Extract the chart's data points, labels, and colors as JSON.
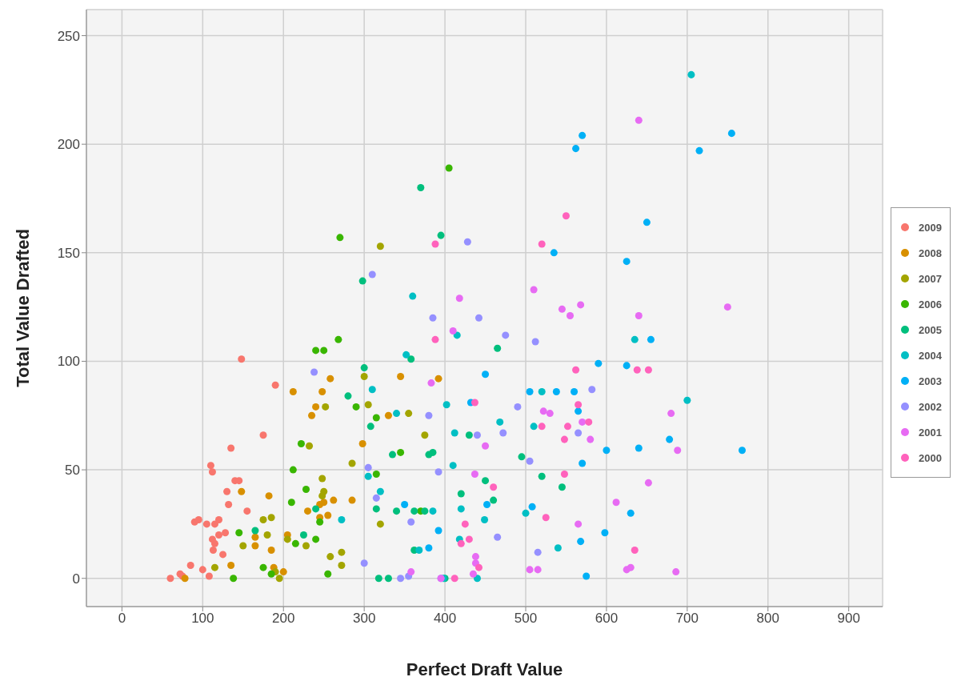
{
  "chart_data": {
    "type": "scatter",
    "xlabel": "Perfect Draft Value",
    "ylabel": "Total Value Drafted",
    "xlim": [
      -44,
      942
    ],
    "ylim": [
      -13,
      262
    ],
    "xticks": [
      0,
      100,
      200,
      300,
      400,
      500,
      600,
      700,
      800,
      900
    ],
    "yticks": [
      0,
      50,
      100,
      150,
      200,
      250
    ],
    "grid": true,
    "legend": "right",
    "marker": "circle",
    "series": [
      {
        "name": "2009",
        "color": "#f8766d",
        "x": [
          60,
          72,
          75,
          85,
          90,
          95,
          100,
          105,
          108,
          110,
          112,
          112,
          113,
          115,
          120,
          125,
          120,
          130,
          132,
          135,
          140,
          145,
          148,
          155,
          175,
          190,
          115,
          128
        ],
        "values": [
          0,
          2,
          1,
          6,
          26,
          27,
          4,
          25,
          1,
          52,
          49,
          18,
          13,
          25,
          27,
          11,
          20,
          40,
          34,
          60,
          45,
          45,
          101,
          31,
          66,
          89,
          16,
          21
        ]
      },
      {
        "name": "2008",
        "color": "#d89000",
        "x": [
          78,
          135,
          148,
          165,
          165,
          182,
          185,
          188,
          200,
          205,
          212,
          230,
          235,
          240,
          245,
          248,
          250,
          255,
          258,
          262,
          285,
          298,
          330,
          345,
          392,
          245
        ],
        "values": [
          0,
          6,
          40,
          19,
          15,
          38,
          13,
          5,
          3,
          20,
          86,
          31,
          75,
          79,
          34,
          86,
          35,
          29,
          92,
          36,
          36,
          62,
          75,
          93,
          92,
          28
        ]
      },
      {
        "name": "2007",
        "color": "#a3a500",
        "x": [
          115,
          150,
          175,
          180,
          185,
          195,
          205,
          228,
          232,
          248,
          250,
          248,
          252,
          258,
          272,
          272,
          285,
          300,
          305,
          320,
          320,
          355,
          375,
          190
        ],
        "values": [
          5,
          15,
          27,
          20,
          28,
          0,
          18,
          15,
          61,
          46,
          40,
          38,
          79,
          10,
          12,
          6,
          53,
          93,
          80,
          153,
          25,
          76,
          66,
          3
        ]
      },
      {
        "name": "2006",
        "color": "#39b600",
        "x": [
          138,
          145,
          175,
          185,
          210,
          212,
          215,
          222,
          228,
          240,
          240,
          245,
          250,
          255,
          268,
          270,
          290,
          315,
          315,
          345,
          405,
          370
        ],
        "values": [
          0,
          21,
          5,
          2,
          35,
          50,
          16,
          62,
          41,
          105,
          18,
          26,
          105,
          2,
          110,
          157,
          79,
          48,
          74,
          58,
          189,
          31
        ]
      },
      {
        "name": "2005",
        "color": "#00bf7d",
        "x": [
          165,
          225,
          240,
          280,
          298,
          300,
          308,
          315,
          318,
          330,
          340,
          358,
          362,
          362,
          370,
          375,
          385,
          395,
          400,
          420,
          430,
          450,
          460,
          465,
          495,
          520,
          545,
          380,
          335
        ],
        "values": [
          22,
          20,
          32,
          84,
          137,
          97,
          70,
          32,
          0,
          0,
          31,
          101,
          31,
          13,
          180,
          31,
          58,
          158,
          0,
          39,
          66,
          45,
          36,
          106,
          56,
          47,
          42,
          57,
          57
        ]
      },
      {
        "name": "2004",
        "color": "#00bfc4",
        "x": [
          272,
          305,
          310,
          320,
          340,
          352,
          360,
          368,
          385,
          398,
          402,
          410,
          412,
          418,
          420,
          440,
          449,
          468,
          510,
          540,
          500,
          415,
          635,
          700,
          705,
          520
        ],
        "values": [
          27,
          47,
          87,
          40,
          76,
          103,
          130,
          13,
          31,
          0,
          80,
          52,
          67,
          18,
          32,
          0,
          27,
          72,
          70,
          14,
          30,
          112,
          110,
          82,
          232,
          86
        ]
      },
      {
        "name": "2003",
        "color": "#00b0f6",
        "x": [
          350,
          380,
          392,
          432,
          450,
          452,
          505,
          508,
          535,
          538,
          560,
          562,
          565,
          570,
          568,
          570,
          575,
          590,
          598,
          600,
          625,
          625,
          630,
          640,
          650,
          655,
          678,
          715,
          755,
          768
        ],
        "values": [
          34,
          14,
          22,
          81,
          94,
          34,
          86,
          33,
          150,
          86,
          86,
          198,
          77,
          204,
          17,
          53,
          1,
          99,
          21,
          59,
          98,
          146,
          30,
          60,
          164,
          110,
          64,
          197,
          205,
          59
        ]
      },
      {
        "name": "2002",
        "color": "#9590ff",
        "x": [
          238,
          300,
          305,
          310,
          315,
          345,
          355,
          358,
          380,
          385,
          392,
          395,
          428,
          440,
          442,
          465,
          472,
          475,
          490,
          505,
          515,
          512,
          565,
          582
        ],
        "values": [
          95,
          7,
          51,
          140,
          37,
          0,
          1,
          26,
          75,
          120,
          49,
          0,
          155,
          66,
          120,
          19,
          67,
          112,
          79,
          54,
          12,
          109,
          67,
          87
        ]
      },
      {
        "name": "2001",
        "color": "#e76bf3",
        "x": [
          358,
          383,
          395,
          410,
          418,
          435,
          437,
          438,
          450,
          505,
          515,
          510,
          522,
          530,
          545,
          555,
          565,
          568,
          570,
          580,
          612,
          625,
          630,
          640,
          640,
          652,
          680,
          686,
          688,
          750,
          438
        ],
        "values": [
          3,
          90,
          0,
          114,
          129,
          2,
          48,
          10,
          61,
          4,
          4,
          133,
          77,
          76,
          124,
          121,
          25,
          126,
          72,
          64,
          35,
          4,
          5,
          121,
          211,
          44,
          76,
          3,
          59,
          125,
          7
        ]
      },
      {
        "name": "2000",
        "color": "#ff62bc",
        "x": [
          388,
          388,
          420,
          425,
          430,
          437,
          442,
          460,
          520,
          520,
          525,
          548,
          548,
          550,
          552,
          562,
          565,
          578,
          635,
          638,
          652,
          412
        ],
        "values": [
          154,
          110,
          16,
          25,
          18,
          81,
          5,
          42,
          70,
          154,
          28,
          64,
          48,
          167,
          70,
          96,
          80,
          72,
          13,
          96,
          96,
          0
        ]
      }
    ]
  }
}
